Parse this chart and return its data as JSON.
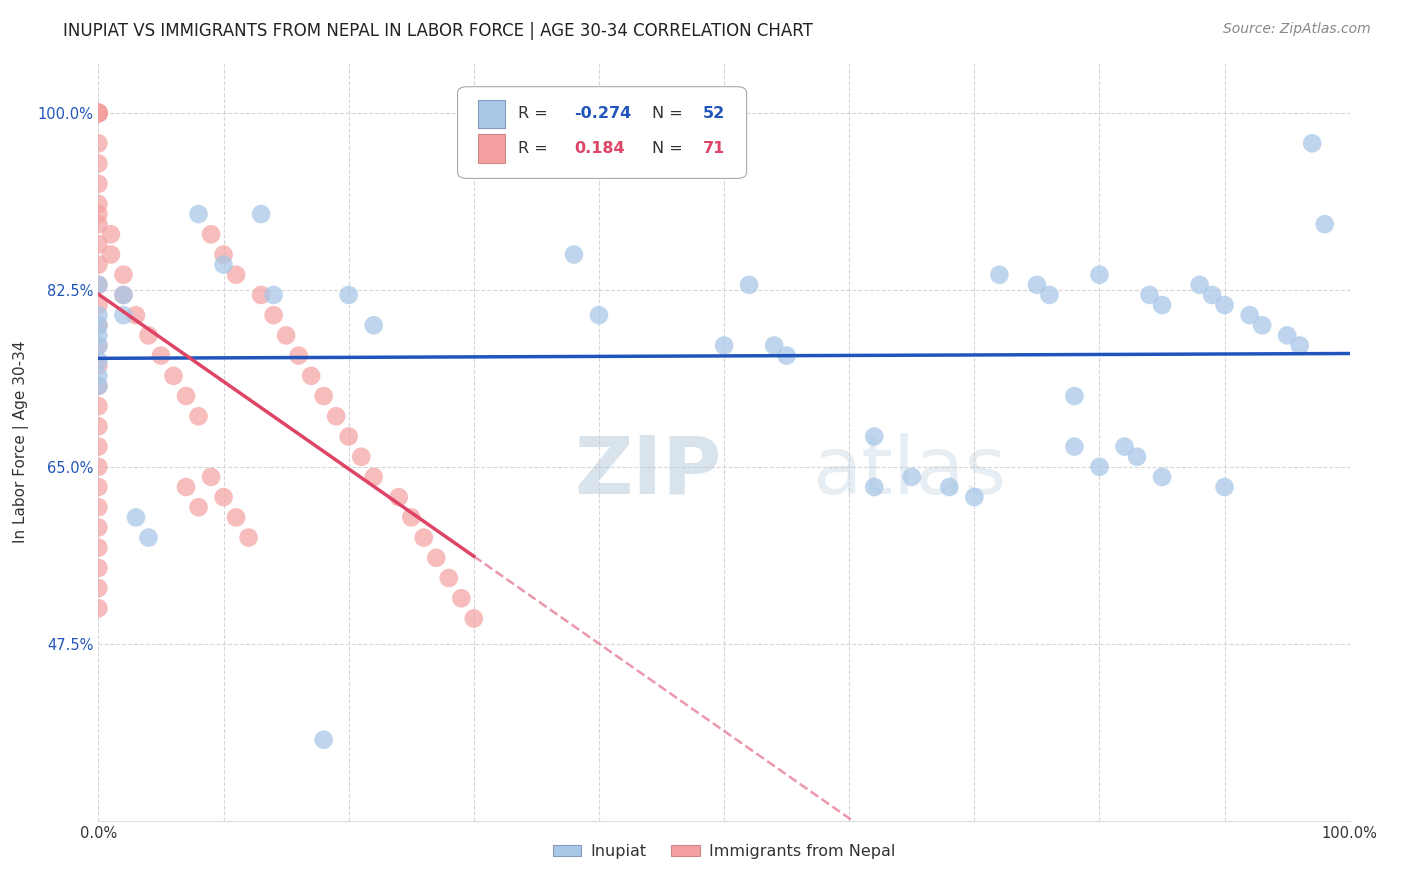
{
  "title": "INUPIAT VS IMMIGRANTS FROM NEPAL IN LABOR FORCE | AGE 30-34 CORRELATION CHART",
  "source": "Source: ZipAtlas.com",
  "ylabel": "In Labor Force | Age 30-34",
  "watermark_zip": "ZIP",
  "watermark_atlas": "atlas",
  "xlim": [
    0.0,
    1.0
  ],
  "ylim": [
    0.3,
    1.05
  ],
  "ytick_positions": [
    0.475,
    0.65,
    0.825,
    1.0
  ],
  "blue_color": "#a8c8e8",
  "pink_color": "#f4a0a0",
  "line_blue": "#2255bb",
  "line_pink": "#dd4466",
  "background_color": "#ffffff",
  "grid_color": "#cccccc",
  "inupiat_x": [
    0.0,
    0.0,
    0.0,
    0.0,
    0.0,
    0.0,
    0.0,
    0.0,
    0.02,
    0.02,
    0.03,
    0.04,
    0.08,
    0.1,
    0.13,
    0.14,
    0.2,
    0.22,
    0.38,
    0.4,
    0.52,
    0.54,
    0.62,
    0.65,
    0.68,
    0.72,
    0.75,
    0.76,
    0.78,
    0.8,
    0.82,
    0.83,
    0.84,
    0.85,
    0.88,
    0.89,
    0.9,
    0.92,
    0.93,
    0.95,
    0.96,
    0.97,
    0.98,
    0.62,
    0.7,
    0.5,
    0.55,
    0.78,
    0.8,
    0.85,
    0.9,
    0.18
  ],
  "inupiat_y": [
    0.83,
    0.8,
    0.79,
    0.78,
    0.77,
    0.755,
    0.74,
    0.73,
    0.82,
    0.8,
    0.6,
    0.58,
    0.9,
    0.85,
    0.9,
    0.82,
    0.82,
    0.79,
    0.86,
    0.8,
    0.83,
    0.77,
    0.68,
    0.64,
    0.63,
    0.84,
    0.83,
    0.82,
    0.72,
    0.84,
    0.67,
    0.66,
    0.82,
    0.81,
    0.83,
    0.82,
    0.81,
    0.8,
    0.79,
    0.78,
    0.77,
    0.97,
    0.89,
    0.63,
    0.62,
    0.77,
    0.76,
    0.67,
    0.65,
    0.64,
    0.63,
    0.38
  ],
  "nepal_x": [
    0.0,
    0.0,
    0.0,
    0.0,
    0.0,
    0.0,
    0.0,
    0.0,
    0.0,
    0.0,
    0.0,
    0.0,
    0.0,
    0.0,
    0.0,
    0.0,
    0.0,
    0.0,
    0.0,
    0.0,
    0.0,
    0.0,
    0.0,
    0.0,
    0.0,
    0.0,
    0.0,
    0.0,
    0.0,
    0.0,
    0.0,
    0.0,
    0.0,
    0.0,
    0.0,
    0.01,
    0.01,
    0.02,
    0.02,
    0.03,
    0.04,
    0.05,
    0.06,
    0.07,
    0.08,
    0.09,
    0.1,
    0.11,
    0.13,
    0.14,
    0.15,
    0.16,
    0.17,
    0.18,
    0.19,
    0.2,
    0.21,
    0.22,
    0.24,
    0.25,
    0.26,
    0.27,
    0.28,
    0.29,
    0.3,
    0.07,
    0.08,
    0.09,
    0.1,
    0.11,
    0.12
  ],
  "nepal_y": [
    1.0,
    1.0,
    1.0,
    1.0,
    1.0,
    1.0,
    1.0,
    1.0,
    1.0,
    1.0,
    0.97,
    0.95,
    0.93,
    0.91,
    0.89,
    0.87,
    0.85,
    0.83,
    0.81,
    0.79,
    0.77,
    0.75,
    0.73,
    0.71,
    0.69,
    0.67,
    0.65,
    0.63,
    0.61,
    0.59,
    0.57,
    0.55,
    0.53,
    0.51,
    0.9,
    0.88,
    0.86,
    0.84,
    0.82,
    0.8,
    0.78,
    0.76,
    0.74,
    0.72,
    0.7,
    0.88,
    0.86,
    0.84,
    0.82,
    0.8,
    0.78,
    0.76,
    0.74,
    0.72,
    0.7,
    0.68,
    0.66,
    0.64,
    0.62,
    0.6,
    0.58,
    0.56,
    0.54,
    0.52,
    0.5,
    0.63,
    0.61,
    0.64,
    0.62,
    0.6,
    0.58
  ],
  "title_fontsize": 12,
  "axis_fontsize": 11,
  "tick_fontsize": 10.5,
  "source_fontsize": 10
}
